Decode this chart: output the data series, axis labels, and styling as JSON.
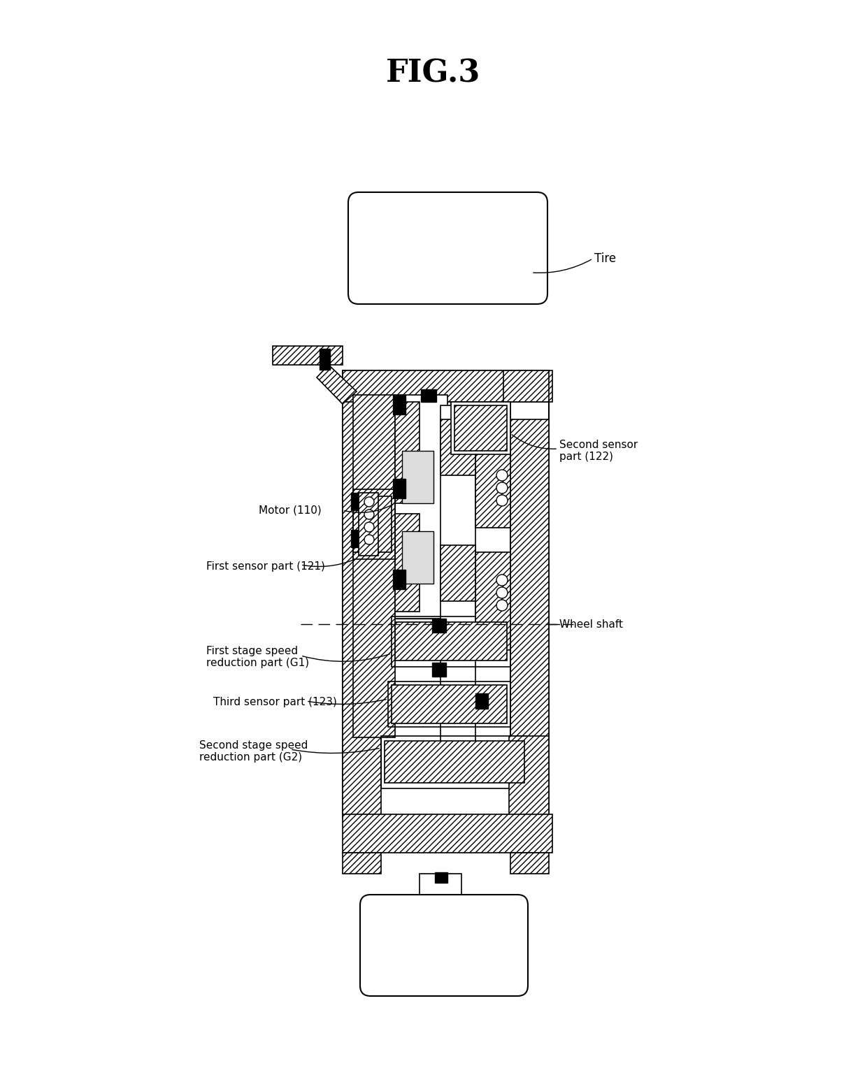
{
  "title": "FIG.3",
  "title_fontsize": 32,
  "title_fontweight": "bold",
  "background_color": "#ffffff",
  "labels": {
    "tire": "Tire",
    "second_sensor": "Second sensor\npart (122)",
    "motor": "Motor (110)",
    "first_sensor": "First sensor part (121)",
    "wheel_shaft": "Wheel shaft",
    "first_stage": "First stage speed\nreduction part (G1)",
    "third_sensor": "Third sensor part (123)",
    "second_stage": "Second stage speed\nreduction part (G2)"
  },
  "line_color": "#000000",
  "figsize": [
    12.4,
    15.38
  ],
  "dpi": 100
}
